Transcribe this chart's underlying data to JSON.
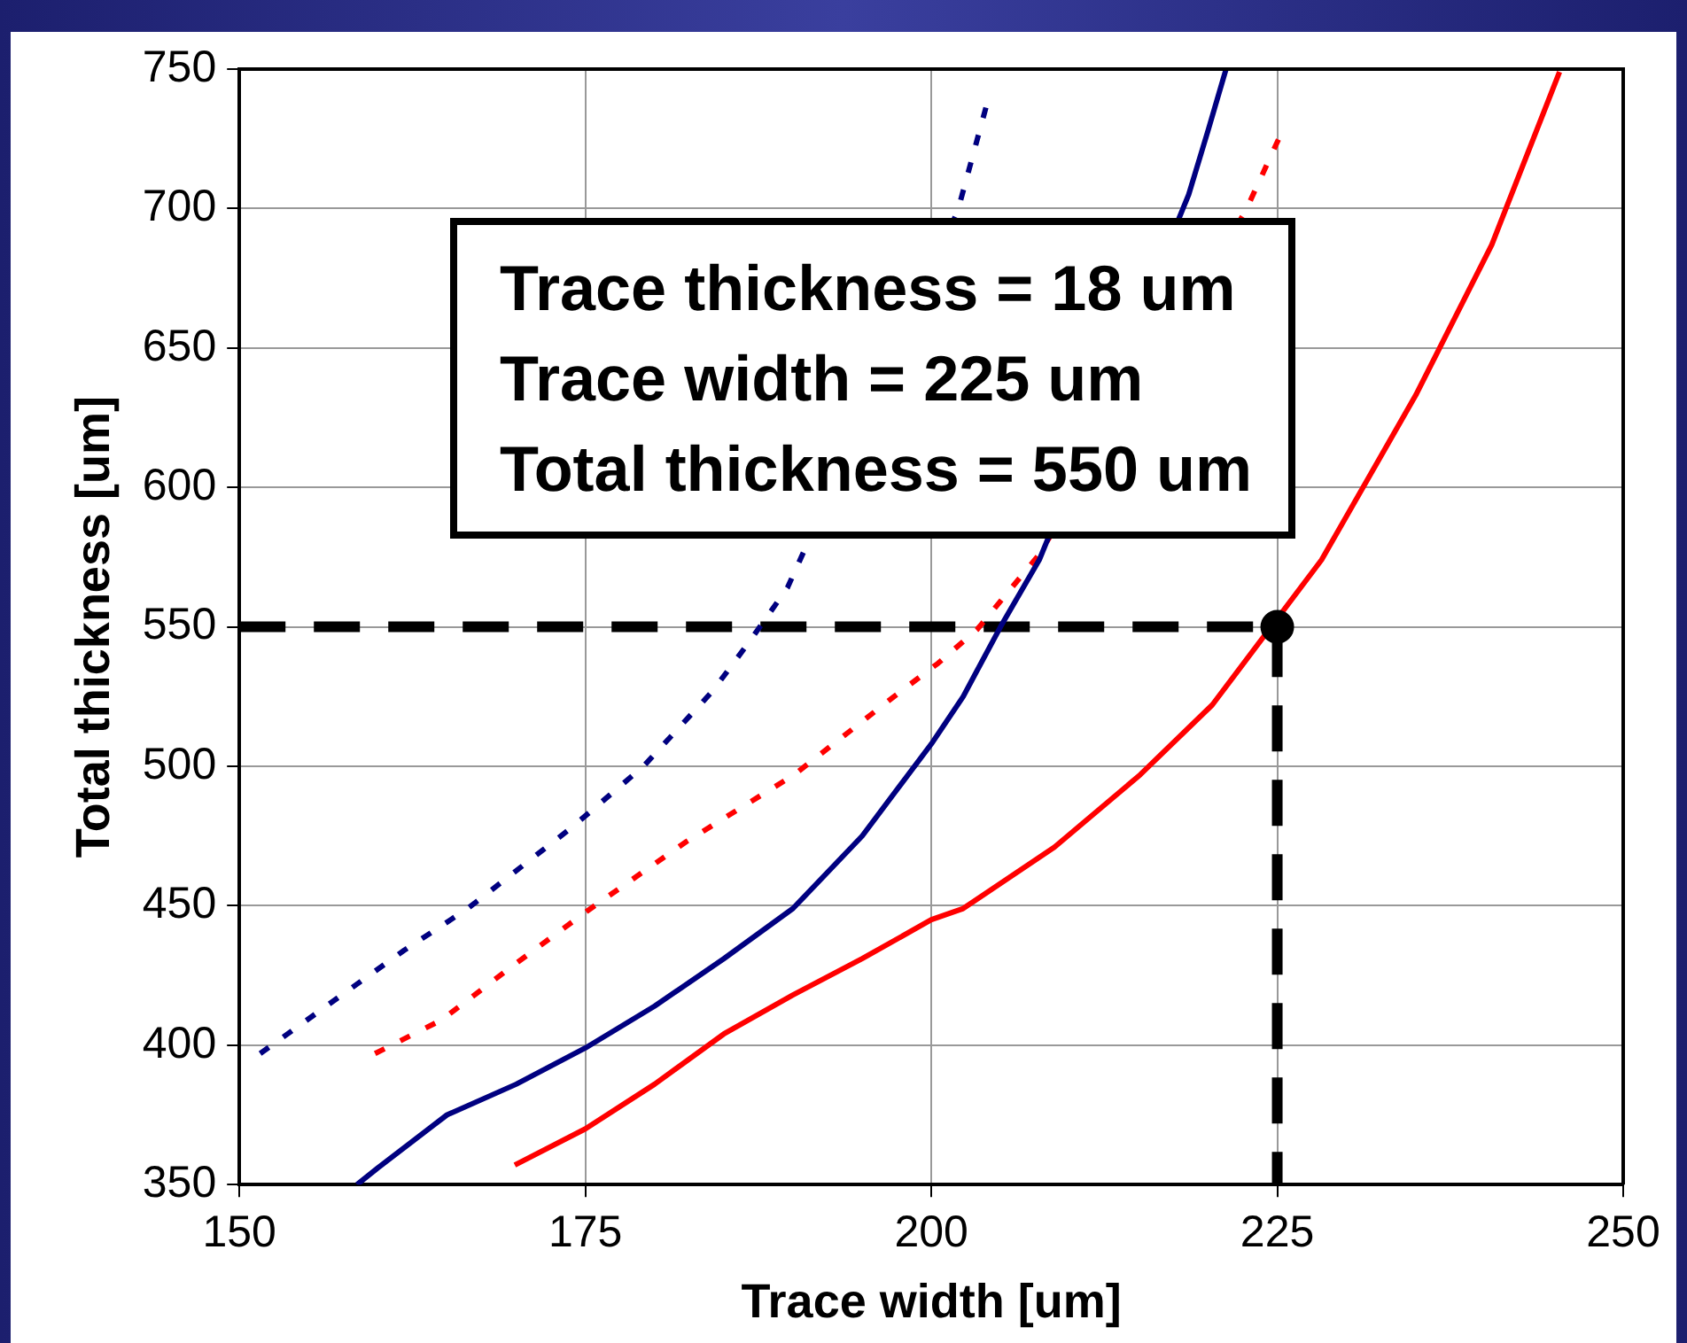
{
  "chart_data": {
    "type": "line",
    "xlabel": "Trace width [um]",
    "ylabel": "Total thickness [um]",
    "annotations": [
      "Trace thickness = 18 um",
      "Trace width = 225 um",
      "Total thickness = 550 um"
    ],
    "xlim": [
      150,
      250
    ],
    "xticks": [
      150,
      175,
      200,
      225,
      250
    ],
    "ylim": [
      350,
      750
    ],
    "yticks": [
      350,
      400,
      450,
      500,
      550,
      600,
      650,
      700,
      750
    ],
    "grid": true,
    "legend": false,
    "marker": "none",
    "series": [
      {
        "color": "#000080",
        "line_style": "solid",
        "x": [
          158.5,
          160,
          165,
          170,
          175,
          180,
          185,
          190,
          195,
          200,
          202.3,
          205,
          207.8,
          218.6,
          220,
          221.3
        ],
        "values": [
          350,
          356,
          375,
          386,
          399,
          414,
          431,
          449,
          475,
          508,
          525,
          550,
          574,
          705,
          728,
          750
        ]
      },
      {
        "color": "#ff0000",
        "line_style": "solid",
        "x": [
          169.9,
          175,
          180,
          185,
          190,
          195,
          200,
          202.3,
          208.9,
          215.1,
          220.3,
          228.2,
          235,
          240.5,
          245.4
        ],
        "values": [
          357,
          370,
          386,
          404,
          418,
          431,
          445,
          449,
          471,
          497,
          522,
          574,
          633,
          687,
          749
        ]
      },
      {
        "color": "#000080",
        "line_style": "dotted",
        "x": [
          151.5,
          161.9,
          166.5,
          174,
          179.2,
          184.2,
          186.9,
          189.6,
          201.9,
          204.1
        ],
        "values": [
          397,
          434,
          449,
          478,
          500,
          527,
          545,
          564,
          699,
          739
        ]
      },
      {
        "color": "#ff0000",
        "line_style": "dotted",
        "x": [
          159.8,
          164.6,
          169.9,
          175.1,
          182.3,
          190.1,
          197.3,
          200.5,
          203.3,
          207.8,
          222.7,
          225.2
        ],
        "values": [
          397,
          409,
          429,
          448,
          473,
          497,
          525,
          537,
          549,
          576,
          699,
          726
        ]
      },
      {
        "color": "#000000",
        "line_style": "dashed",
        "x": [
          150,
          225,
          225
        ],
        "values": [
          550,
          550,
          350
        ]
      },
      {
        "type": "scatter",
        "color": "#000000",
        "marker": "circle",
        "x": [
          225
        ],
        "values": [
          550
        ]
      }
    ]
  }
}
